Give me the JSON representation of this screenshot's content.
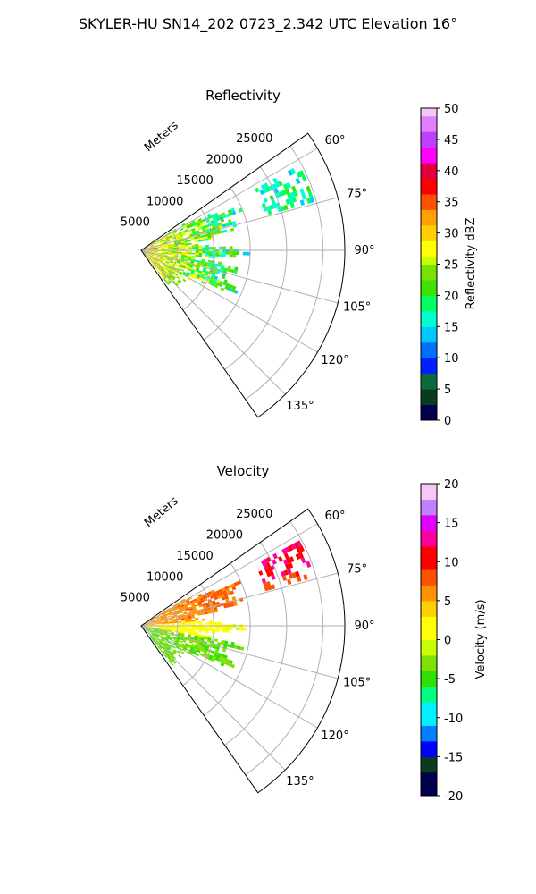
{
  "figure": {
    "suptitle": "SKYLER-HU  SN14_202  0723_2.342 UTC Elevation 16°"
  },
  "chart_data": [
    {
      "type": "heatmap",
      "projection": "polar-sector",
      "title": "Reflectivity",
      "radial_label": "Meters",
      "radial_ticks": [
        "5000",
        "10000",
        "15000",
        "20000",
        "25000"
      ],
      "radial_range": [
        0,
        28000
      ],
      "angle_ticks": [
        "60°",
        "75°",
        "90°",
        "105°",
        "120°",
        "135°"
      ],
      "angle_range_deg": [
        55,
        145
      ],
      "grid": true,
      "colorbar": {
        "label": "Reflectivity dBZ",
        "ticks": [
          "0",
          "5",
          "10",
          "15",
          "20",
          "25",
          "30",
          "35",
          "40",
          "45",
          "50"
        ],
        "range": [
          0,
          50
        ]
      }
    },
    {
      "type": "heatmap",
      "projection": "polar-sector",
      "title": "Velocity",
      "radial_label": "Meters",
      "radial_ticks": [
        "5000",
        "10000",
        "15000",
        "20000",
        "25000"
      ],
      "radial_range": [
        0,
        28000
      ],
      "angle_ticks": [
        "60°",
        "75°",
        "90°",
        "105°",
        "120°",
        "135°"
      ],
      "angle_range_deg": [
        55,
        145
      ],
      "grid": true,
      "colorbar": {
        "label": "Velocity (m/s)",
        "ticks": [
          "-20",
          "-15",
          "-10",
          "-5",
          "0",
          "5",
          "10",
          "15",
          "20"
        ],
        "range": [
          -20,
          20
        ]
      }
    }
  ],
  "colors": {
    "refl_scale": [
      "#00004c",
      "#0a3a1f",
      "#0c6b3a",
      "#0020ff",
      "#0070ff",
      "#00c8ff",
      "#00ffd0",
      "#00ff60",
      "#40e000",
      "#7ae000",
      "#c8ff00",
      "#ffff00",
      "#ffd000",
      "#ffa000",
      "#ff5000",
      "#ff0000",
      "#e00040",
      "#ff00ff",
      "#c040ff",
      "#e080ff",
      "#f6c8f6"
    ],
    "vel_scale": [
      "#00004c",
      "#0a3a1f",
      "#0000ff",
      "#0080ff",
      "#00f0ff",
      "#00ff80",
      "#30e000",
      "#80e000",
      "#c8ff00",
      "#ffff00",
      "#ffd000",
      "#ff9000",
      "#ff5000",
      "#ff0000",
      "#ff00a0",
      "#e000ff",
      "#c080ff",
      "#f6c8f6"
    ]
  }
}
